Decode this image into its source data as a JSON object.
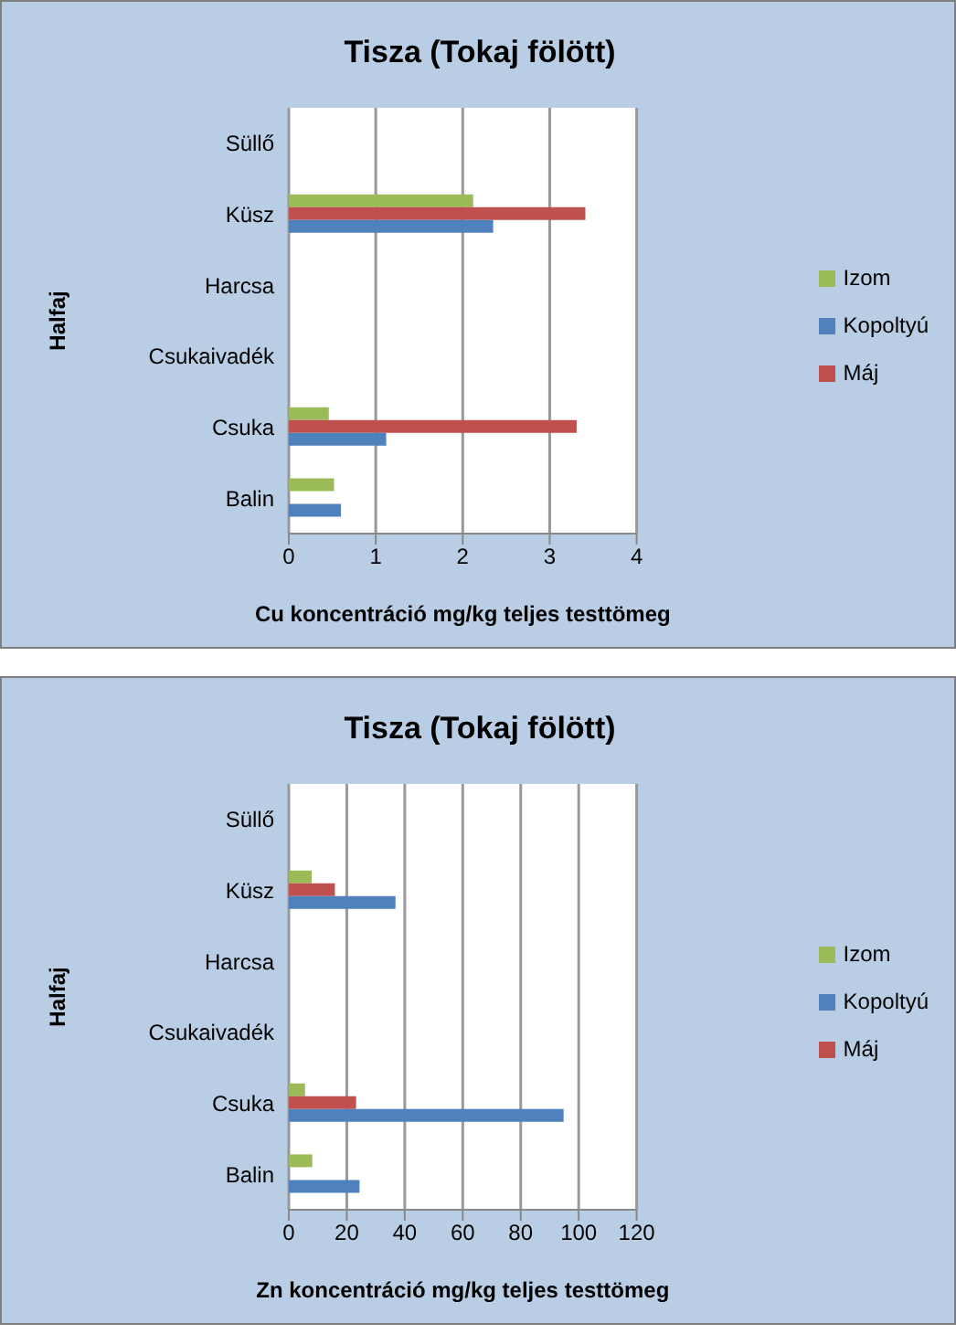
{
  "chart_data": [
    {
      "type": "bar",
      "orientation": "horizontal",
      "title": "Tisza (Tokaj fölött)",
      "xlabel": "Cu koncentráció mg/kg teljes testtömeg",
      "ylabel": "Halfaj",
      "categories": [
        "Süllő",
        "Küsz",
        "Harcsa",
        "Csukaivadék",
        "Csuka",
        "Balin"
      ],
      "xlim": [
        0,
        4
      ],
      "xticks": [
        0,
        1,
        2,
        3,
        4
      ],
      "grid": "x",
      "legend": "right",
      "series": [
        {
          "name": "Izom",
          "color": "#9bbb59",
          "values": [
            null,
            2.12,
            null,
            null,
            0.46,
            0.52
          ]
        },
        {
          "name": "Máj",
          "color": "#c0504d",
          "values": [
            null,
            3.41,
            null,
            null,
            3.31,
            null
          ]
        },
        {
          "name": "Kopoltyú",
          "color": "#4f81bd",
          "values": [
            null,
            2.35,
            null,
            null,
            1.12,
            0.6
          ]
        }
      ]
    },
    {
      "type": "bar",
      "orientation": "horizontal",
      "title": "Tisza (Tokaj fölött)",
      "xlabel": "Zn koncentráció mg/kg teljes testtömeg",
      "ylabel": "Halfaj",
      "categories": [
        "Süllő",
        "Küsz",
        "Harcsa",
        "Csukaivadék",
        "Csuka",
        "Balin"
      ],
      "xlim": [
        0,
        120
      ],
      "xticks": [
        0,
        20,
        40,
        60,
        80,
        100,
        120
      ],
      "grid": "x",
      "legend": "right",
      "series": [
        {
          "name": "Izom",
          "color": "#9bbb59",
          "values": [
            null,
            7.9,
            null,
            null,
            5.6,
            8.1
          ]
        },
        {
          "name": "Máj",
          "color": "#c0504d",
          "values": [
            null,
            15.9,
            null,
            null,
            23.2,
            null
          ]
        },
        {
          "name": "Kopoltyú",
          "color": "#4f81bd",
          "values": [
            null,
            36.8,
            null,
            null,
            94.8,
            24.4
          ]
        }
      ]
    }
  ]
}
